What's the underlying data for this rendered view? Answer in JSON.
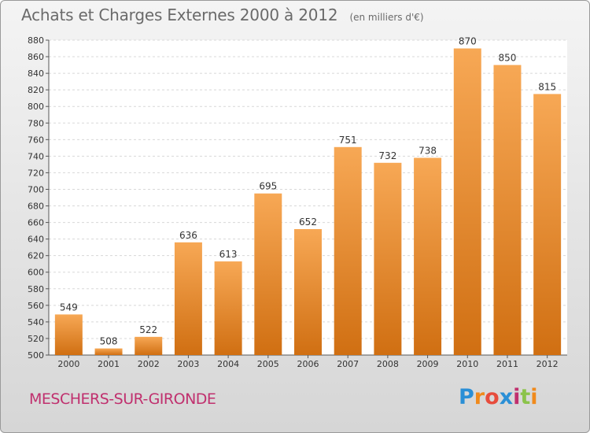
{
  "header": {
    "title": "Achats et Charges Externes 2000 à 2012",
    "subtitle": "(en milliers d'€)"
  },
  "footer": {
    "commune": "MESCHERS-SUR-GIRONDE",
    "logo": {
      "letters": [
        "P",
        "r",
        "o",
        "x",
        "i",
        "t",
        "i"
      ],
      "colors": [
        "#2a8fd6",
        "#f08a1c",
        "#e74c3c",
        "#2a8fd6",
        "#c0306e",
        "#8bc34a",
        "#f08a1c"
      ]
    }
  },
  "colors": {
    "bar_top": "#f7a855",
    "bar_bottom": "#d06f12",
    "grid": "#d8d8d8",
    "plot_bg": "#ffffff"
  },
  "chart_data": {
    "type": "bar",
    "categories": [
      "2000",
      "2001",
      "2002",
      "2003",
      "2004",
      "2005",
      "2006",
      "2007",
      "2008",
      "2009",
      "2010",
      "2011",
      "2012"
    ],
    "values": [
      549,
      508,
      522,
      636,
      613,
      695,
      652,
      751,
      732,
      738,
      870,
      850,
      815
    ],
    "ylim": [
      500,
      880
    ],
    "ytick_step": 20,
    "grid": true
  }
}
